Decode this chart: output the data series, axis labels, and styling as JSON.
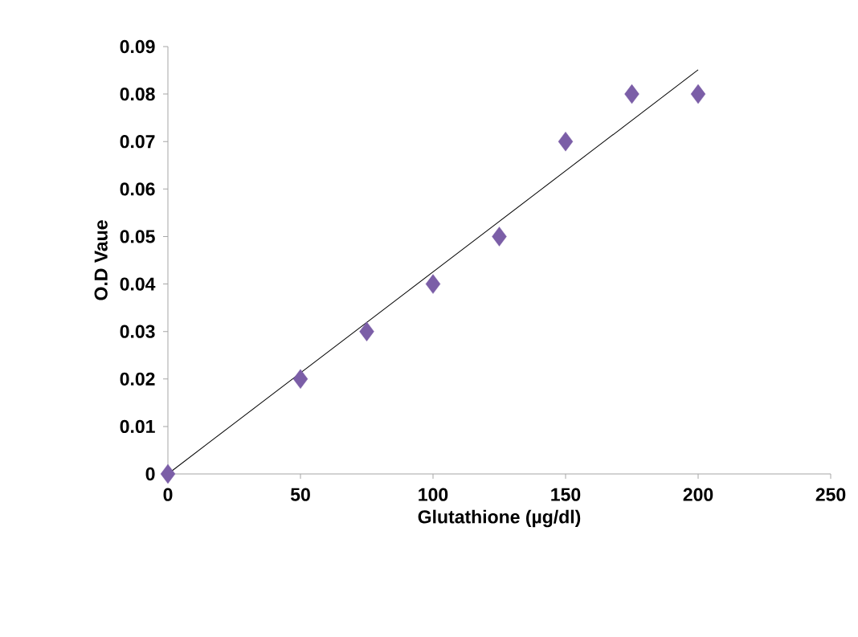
{
  "chart_data": {
    "type": "scatter",
    "xlabel": "Glutathione (µg/dl)",
    "ylabel": "O.D Vaue",
    "series": [
      {
        "color": "#7b5ea7",
        "marker": "diamond",
        "x": [
          0,
          50,
          75,
          100,
          125,
          150,
          175,
          200
        ],
        "values": [
          0,
          0.02,
          0.03,
          0.04,
          0.05,
          0.07,
          0.08,
          0.08
        ]
      },
      {
        "type": "line",
        "color": "#000000",
        "marker": "none",
        "x": [
          0,
          200
        ],
        "values": [
          0,
          0.0851
        ]
      }
    ],
    "xlim": [
      0,
      250
    ],
    "xticks": [
      0,
      50,
      100,
      150,
      200,
      250
    ],
    "ylim": [
      0,
      0.09
    ],
    "yticks": [
      0,
      0.01,
      0.02,
      0.03,
      0.04,
      0.05,
      0.06,
      0.07,
      0.08,
      0.09
    ],
    "grid": false
  }
}
